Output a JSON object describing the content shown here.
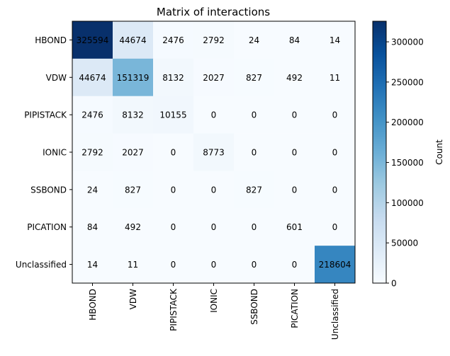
{
  "chart_data": {
    "type": "heatmap",
    "title": "Matrix of interactions",
    "rows": [
      "HBOND",
      "VDW",
      "PIPISTACK",
      "IONIC",
      "SSBOND",
      "PICATION",
      "Unclassified"
    ],
    "columns": [
      "HBOND",
      "VDW",
      "PIPISTACK",
      "IONIC",
      "SSBOND",
      "PICATION",
      "Unclassified"
    ],
    "values": [
      [
        325594,
        44674,
        2476,
        2792,
        24,
        84,
        14
      ],
      [
        44674,
        151319,
        8132,
        2027,
        827,
        492,
        11
      ],
      [
        2476,
        8132,
        10155,
        0,
        0,
        0,
        0
      ],
      [
        2792,
        2027,
        0,
        8773,
        0,
        0,
        0
      ],
      [
        24,
        827,
        0,
        0,
        827,
        0,
        0
      ],
      [
        84,
        492,
        0,
        0,
        0,
        601,
        0
      ],
      [
        14,
        11,
        0,
        0,
        0,
        0,
        218604
      ]
    ],
    "colorbar": {
      "label": "Count",
      "range": [
        0,
        325594
      ],
      "ticks": [
        0,
        50000,
        100000,
        150000,
        200000,
        250000,
        300000
      ],
      "colormap": "Blues"
    },
    "colormap_stops": [
      "#f7fbff",
      "#deebf7",
      "#c6dbef",
      "#9ecae1",
      "#6baed6",
      "#4292c6",
      "#2171b5",
      "#08519c",
      "#08306b"
    ],
    "grid": false
  }
}
